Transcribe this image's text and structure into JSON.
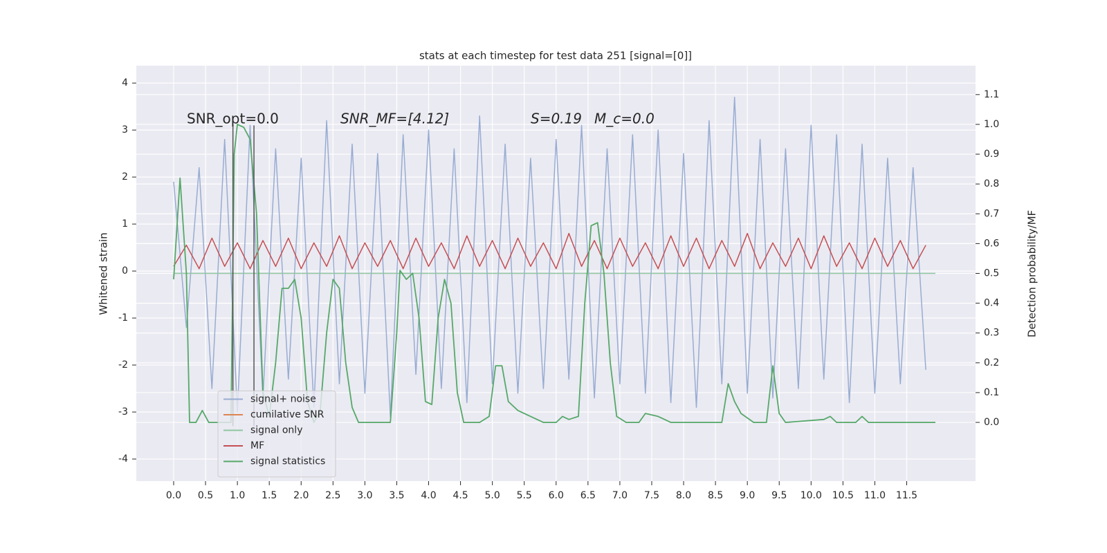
{
  "chart_data": {
    "type": "line",
    "title": "stats at each timestep for test data 251 [signal=[0]]",
    "ylabel": "Whitened strain",
    "y2label": "Detection probability/MF",
    "annotations": [
      "SNR_opt=0.0",
      "SNR_MF=[4.12]",
      "S=0.19",
      "M_c=0.0"
    ],
    "background": "#eaeaf2",
    "grid": true,
    "legend": "lower left",
    "xlim": [
      -0.586,
      12.58
    ],
    "ylim": [
      -4.47,
      4.37
    ],
    "y2lim": [
      -0.197,
      1.197
    ],
    "xticks": [
      {
        "value": 0,
        "label": "0.0"
      },
      {
        "value": 0.5,
        "label": "0.5"
      },
      {
        "value": 1,
        "label": "1.0"
      },
      {
        "value": 1.5,
        "label": "1.5"
      },
      {
        "value": 2,
        "label": "2.0"
      },
      {
        "value": 2.5,
        "label": "2.5"
      },
      {
        "value": 3,
        "label": "3.0"
      },
      {
        "value": 3.5,
        "label": "3.5"
      },
      {
        "value": 4,
        "label": "4.0"
      },
      {
        "value": 4.5,
        "label": "4.5"
      },
      {
        "value": 5,
        "label": "5.0"
      },
      {
        "value": 5.5,
        "label": "5.5"
      },
      {
        "value": 6,
        "label": "6.0"
      },
      {
        "value": 6.5,
        "label": "6.5"
      },
      {
        "value": 7,
        "label": "7.0"
      },
      {
        "value": 7.5,
        "label": "7.5"
      },
      {
        "value": 8,
        "label": "8.0"
      },
      {
        "value": 8.5,
        "label": "8.5"
      },
      {
        "value": 9,
        "label": "9.0"
      },
      {
        "value": 9.5,
        "label": "9.5"
      },
      {
        "value": 10,
        "label": "10.0"
      },
      {
        "value": 10.5,
        "label": "10.5"
      },
      {
        "value": 11,
        "label": "11.0"
      },
      {
        "value": 11.5,
        "label": "11.5"
      }
    ],
    "yticks": [
      -4,
      -3,
      -2,
      -1,
      0,
      1,
      2,
      3,
      4
    ],
    "y2ticks": [
      {
        "value": 0,
        "label": "0.0"
      },
      {
        "value": 0.1,
        "label": "0.1"
      },
      {
        "value": 0.2,
        "label": "0.2"
      },
      {
        "value": 0.3,
        "label": "0.3"
      },
      {
        "value": 0.4,
        "label": "0.4"
      },
      {
        "value": 0.5,
        "label": "0.5"
      },
      {
        "value": 0.6,
        "label": "0.6"
      },
      {
        "value": 0.7,
        "label": "0.7"
      },
      {
        "value": 0.8,
        "label": "0.8"
      },
      {
        "value": 0.9,
        "label": "0.9"
      },
      {
        "value": 1.0,
        "label": "1.0"
      },
      {
        "value": 1.1,
        "label": "1.1"
      }
    ],
    "vlines": [
      0.93,
      1.26
    ],
    "x": [
      0,
      0.2,
      0.4,
      0.6,
      0.8,
      1,
      1.2,
      1.4,
      1.6,
      1.8,
      2,
      2.2,
      2.4,
      2.6,
      2.8,
      3,
      3.2,
      3.4,
      3.6,
      3.8,
      4,
      4.2,
      4.4,
      4.6,
      4.8,
      5,
      5.2,
      5.4,
      5.6,
      5.8,
      6,
      6.2,
      6.4,
      6.6,
      6.8,
      7,
      7.2,
      7.4,
      7.6,
      7.8,
      8,
      8.2,
      8.4,
      8.6,
      8.8,
      9,
      9.2,
      9.4,
      9.6,
      9.8,
      10,
      10.2,
      10.4,
      10.6,
      10.8,
      11,
      11.2,
      11.4,
      11.6,
      11.8
    ],
    "series": [
      {
        "name": "signal+ noise",
        "color": "#98acd2",
        "values": [
          1.9,
          -1.2,
          2.2,
          -2.5,
          2.8,
          -3.0,
          3.1,
          -2.7,
          2.6,
          -2.3,
          2.4,
          -2.9,
          3.2,
          -2.4,
          2.7,
          -2.6,
          2.5,
          -3.1,
          2.9,
          -2.2,
          3.0,
          -2.5,
          2.6,
          -2.8,
          3.3,
          -2.4,
          2.7,
          -2.6,
          2.4,
          -2.5,
          2.8,
          -2.3,
          3.1,
          -2.7,
          2.6,
          -2.4,
          2.9,
          -2.6,
          3.0,
          -2.8,
          2.5,
          -2.9,
          3.2,
          -2.4,
          3.7,
          -2.6,
          2.8,
          -2.7,
          2.6,
          -2.5,
          3.1,
          -2.3,
          2.9,
          -2.8,
          2.7,
          -2.6,
          2.4,
          -2.4,
          2.2,
          -2.1
        ]
      },
      {
        "name": "cumilative SNR",
        "color": "#dd8452",
        "x": [],
        "values": []
      },
      {
        "name": "signal only",
        "color": "#8fc69f",
        "x": [
          0,
          11.95
        ],
        "values": [
          -0.05,
          -0.05
        ]
      },
      {
        "name": "MF",
        "color": "#c44e52",
        "values": [
          0.1,
          0.55,
          0.05,
          0.7,
          0.1,
          0.6,
          0.05,
          0.65,
          0.1,
          0.7,
          0.05,
          0.6,
          0.1,
          0.75,
          0.05,
          0.6,
          0.1,
          0.65,
          0.05,
          0.7,
          0.1,
          0.6,
          0.05,
          0.75,
          0.1,
          0.65,
          0.05,
          0.7,
          0.1,
          0.6,
          0.05,
          0.8,
          0.1,
          0.65,
          0.05,
          0.7,
          0.1,
          0.6,
          0.05,
          0.75,
          0.1,
          0.7,
          0.05,
          0.65,
          0.1,
          0.8,
          0.05,
          0.6,
          0.1,
          0.7,
          0.05,
          0.75,
          0.1,
          0.6,
          0.05,
          0.7,
          0.1,
          0.65,
          0.05,
          0.55
        ]
      },
      {
        "name": "signal statistics",
        "color": "#55a868",
        "axis": "y2",
        "x": [
          0,
          0.1,
          0.2,
          0.25,
          0.35,
          0.45,
          0.55,
          0.7,
          0.9,
          0.95,
          1.0,
          1.1,
          1.2,
          1.3,
          1.4,
          1.5,
          1.6,
          1.7,
          1.8,
          1.9,
          2.0,
          2.1,
          2.2,
          2.3,
          2.4,
          2.5,
          2.6,
          2.7,
          2.8,
          2.9,
          3.0,
          3.2,
          3.4,
          3.5,
          3.55,
          3.65,
          3.75,
          3.85,
          3.95,
          4.05,
          4.15,
          4.25,
          4.35,
          4.45,
          4.55,
          4.8,
          4.95,
          5.05,
          5.15,
          5.25,
          5.4,
          5.6,
          5.8,
          6.0,
          6.1,
          6.2,
          6.35,
          6.45,
          6.55,
          6.65,
          6.75,
          6.85,
          6.95,
          7.1,
          7.3,
          7.4,
          7.6,
          7.8,
          8.2,
          8.6,
          8.7,
          8.8,
          8.9,
          9.1,
          9.3,
          9.4,
          9.5,
          9.6,
          10.2,
          10.3,
          10.4,
          10.7,
          10.8,
          10.9,
          11.95
        ],
        "values": [
          0.48,
          0.82,
          0.5,
          0.0,
          0.0,
          0.04,
          0.0,
          0.0,
          0.0,
          0.9,
          1.0,
          0.99,
          0.95,
          0.7,
          0.1,
          0.02,
          0.2,
          0.45,
          0.45,
          0.48,
          0.35,
          0.07,
          0.0,
          0.04,
          0.3,
          0.48,
          0.45,
          0.2,
          0.05,
          0.0,
          0.0,
          0.0,
          0.0,
          0.3,
          0.51,
          0.48,
          0.5,
          0.35,
          0.07,
          0.06,
          0.35,
          0.48,
          0.4,
          0.1,
          0.0,
          0.0,
          0.02,
          0.19,
          0.19,
          0.07,
          0.04,
          0.02,
          0.0,
          0.0,
          0.02,
          0.01,
          0.02,
          0.4,
          0.66,
          0.67,
          0.5,
          0.2,
          0.02,
          0.0,
          0.0,
          0.03,
          0.02,
          0.0,
          0.0,
          0.0,
          0.13,
          0.07,
          0.03,
          0.0,
          0.0,
          0.19,
          0.03,
          0.0,
          0.01,
          0.02,
          0.0,
          0.0,
          0.02,
          0.0,
          0.0
        ]
      }
    ]
  }
}
